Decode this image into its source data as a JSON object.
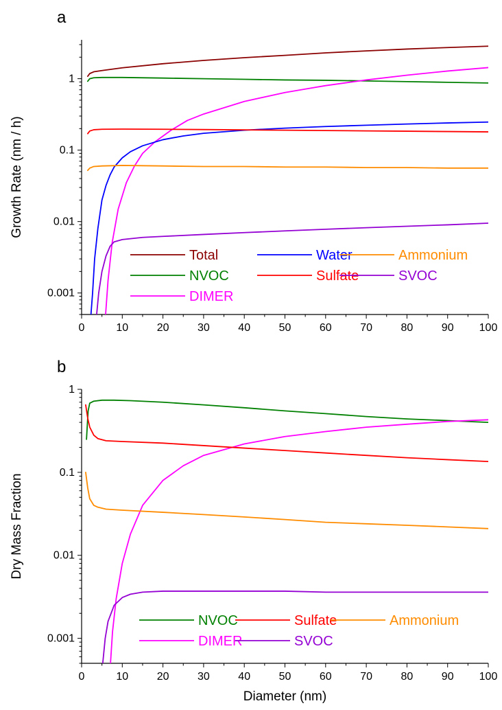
{
  "chart_data": [
    {
      "panel": "a",
      "type": "line",
      "ylabel": "Growth Rate (nm / h)",
      "xlabel": "",
      "xlim": [
        0,
        100
      ],
      "ylim": [
        0.0005,
        3.5
      ],
      "yscale": "log",
      "xticks": [
        "0",
        "10",
        "20",
        "30",
        "40",
        "50",
        "60",
        "70",
        "80",
        "90",
        "100"
      ],
      "yticks": [
        "0.001",
        "0.01",
        "0.1",
        "1"
      ],
      "legend": {
        "placement": "bottom-center",
        "columns": 3
      },
      "series": [
        {
          "name": "Total",
          "color": "#8b0000",
          "x": [
            1.5,
            2,
            3,
            5,
            10,
            20,
            30,
            40,
            50,
            60,
            70,
            80,
            90,
            100
          ],
          "y": [
            1.08,
            1.18,
            1.25,
            1.3,
            1.42,
            1.62,
            1.8,
            1.97,
            2.12,
            2.3,
            2.45,
            2.6,
            2.73,
            2.85
          ]
        },
        {
          "name": "NVOC",
          "color": "#008000",
          "x": [
            1.5,
            2,
            3,
            5,
            10,
            20,
            30,
            40,
            50,
            60,
            70,
            80,
            90,
            100
          ],
          "y": [
            0.92,
            1.0,
            1.03,
            1.04,
            1.04,
            1.02,
            1.0,
            0.98,
            0.96,
            0.95,
            0.93,
            0.91,
            0.89,
            0.87
          ]
        },
        {
          "name": "DIMER",
          "color": "#ff00ff",
          "x": [
            5.9,
            6.5,
            7.5,
            9,
            11,
            13,
            15,
            18,
            22,
            26,
            30,
            40,
            50,
            60,
            70,
            80,
            90,
            100
          ],
          "y": [
            0.0005,
            0.0015,
            0.005,
            0.015,
            0.035,
            0.06,
            0.09,
            0.13,
            0.19,
            0.26,
            0.32,
            0.48,
            0.64,
            0.8,
            0.96,
            1.12,
            1.28,
            1.43
          ]
        },
        {
          "name": "Water",
          "color": "#0000ff",
          "x": [
            2.3,
            2.7,
            3.2,
            4,
            5,
            6,
            7,
            8,
            10,
            12,
            15,
            20,
            25,
            30,
            40,
            50,
            60,
            70,
            80,
            90,
            100
          ],
          "y": [
            0.0005,
            0.001,
            0.003,
            0.008,
            0.02,
            0.032,
            0.045,
            0.058,
            0.078,
            0.095,
            0.115,
            0.14,
            0.158,
            0.172,
            0.19,
            0.203,
            0.214,
            0.223,
            0.232,
            0.24,
            0.247
          ]
        },
        {
          "name": "Sulfate",
          "color": "#ff0000",
          "x": [
            1.5,
            2,
            3,
            5,
            10,
            20,
            30,
            40,
            50,
            60,
            70,
            80,
            90,
            100
          ],
          "y": [
            0.17,
            0.185,
            0.193,
            0.196,
            0.197,
            0.196,
            0.194,
            0.192,
            0.19,
            0.188,
            0.186,
            0.184,
            0.182,
            0.18
          ]
        },
        {
          "name": "Ammonium",
          "color": "#ff8c00",
          "x": [
            1.5,
            2,
            3,
            5,
            10,
            20,
            30,
            40,
            50,
            60,
            70,
            80,
            90,
            100
          ],
          "y": [
            0.052,
            0.056,
            0.059,
            0.06,
            0.061,
            0.06,
            0.059,
            0.059,
            0.058,
            0.058,
            0.057,
            0.057,
            0.056,
            0.056
          ]
        },
        {
          "name": "SVOC",
          "color": "#9400d3",
          "x": [
            3.7,
            4.2,
            5,
            6,
            7,
            8,
            10,
            15,
            20,
            30,
            40,
            50,
            60,
            70,
            80,
            90,
            100
          ],
          "y": [
            0.0005,
            0.001,
            0.002,
            0.0033,
            0.0045,
            0.0052,
            0.0056,
            0.006,
            0.0062,
            0.0066,
            0.007,
            0.0074,
            0.0078,
            0.0082,
            0.0086,
            0.009,
            0.0095
          ]
        }
      ]
    },
    {
      "panel": "b",
      "type": "line",
      "ylabel": "Dry Mass Fraction",
      "xlabel": "Diameter (nm)",
      "xlim": [
        0,
        100
      ],
      "ylim": [
        0.0005,
        1
      ],
      "yscale": "log",
      "xticks": [
        "0",
        "10",
        "20",
        "30",
        "40",
        "50",
        "60",
        "70",
        "80",
        "90",
        "100"
      ],
      "yticks": [
        "0.001",
        "0.01",
        "0.1",
        "1"
      ],
      "legend": {
        "placement": "bottom-center",
        "columns": 3
      },
      "series": [
        {
          "name": "NVOC",
          "color": "#008000",
          "x": [
            1.2,
            1.6,
            2,
            3,
            5,
            8,
            12,
            20,
            30,
            40,
            50,
            60,
            70,
            80,
            90,
            100
          ],
          "y": [
            0.25,
            0.55,
            0.68,
            0.72,
            0.74,
            0.74,
            0.73,
            0.7,
            0.65,
            0.6,
            0.55,
            0.51,
            0.47,
            0.44,
            0.42,
            0.4
          ]
        },
        {
          "name": "DIMER",
          "color": "#ff00ff",
          "x": [
            7.1,
            7.6,
            8.5,
            10,
            12,
            15,
            20,
            25,
            30,
            40,
            50,
            60,
            70,
            80,
            90,
            100
          ],
          "y": [
            0.0005,
            0.0012,
            0.003,
            0.008,
            0.018,
            0.04,
            0.08,
            0.12,
            0.16,
            0.22,
            0.27,
            0.31,
            0.35,
            0.38,
            0.41,
            0.43
          ]
        },
        {
          "name": "Sulfate",
          "color": "#ff0000",
          "x": [
            1,
            1.5,
            2,
            3,
            4,
            6,
            10,
            20,
            30,
            40,
            50,
            60,
            70,
            80,
            90,
            100
          ],
          "y": [
            0.65,
            0.45,
            0.35,
            0.28,
            0.255,
            0.24,
            0.235,
            0.225,
            0.21,
            0.196,
            0.183,
            0.171,
            0.16,
            0.15,
            0.142,
            0.135
          ]
        },
        {
          "name": "Ammonium",
          "color": "#ff8c00",
          "x": [
            1,
            1.5,
            2,
            3,
            4,
            6,
            10,
            20,
            30,
            40,
            50,
            60,
            70,
            80,
            90,
            100
          ],
          "y": [
            0.1,
            0.065,
            0.048,
            0.04,
            0.038,
            0.036,
            0.035,
            0.033,
            0.031,
            0.029,
            0.027,
            0.025,
            0.024,
            0.023,
            0.022,
            0.021
          ]
        },
        {
          "name": "SVOC",
          "color": "#9400d3",
          "x": [
            5.2,
            5.8,
            6.5,
            8,
            10,
            12,
            15,
            20,
            25,
            30,
            40,
            50,
            60,
            70,
            80,
            90,
            100
          ],
          "y": [
            0.0005,
            0.001,
            0.0016,
            0.0025,
            0.0031,
            0.0034,
            0.0036,
            0.0037,
            0.0037,
            0.0037,
            0.0037,
            0.0037,
            0.0036,
            0.0036,
            0.0036,
            0.0036,
            0.0036
          ]
        }
      ]
    }
  ]
}
